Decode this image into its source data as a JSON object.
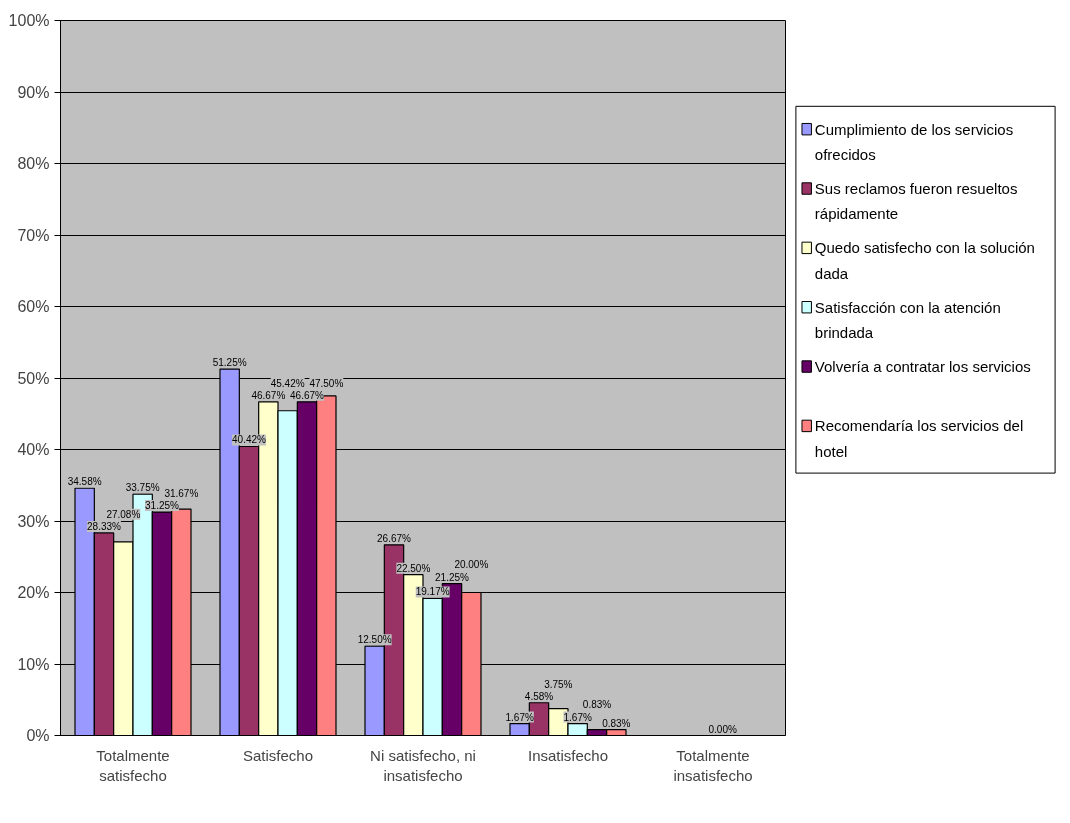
{
  "chart_data": {
    "type": "bar",
    "categories": [
      "Totalmente satisfecho",
      "Satisfecho",
      "Ni satisfecho, ni insatisfecho",
      "Insatisfecho",
      "Totalmente insatisfecho"
    ],
    "series": [
      {
        "name": "Cumplimiento de los servicios ofrecidos",
        "color": "#9999ff",
        "values": [
          34.58,
          51.25,
          12.5,
          1.67,
          0
        ],
        "value_labels": [
          "34.58%",
          "51.25%",
          "12.50%",
          "1.67%",
          null
        ]
      },
      {
        "name": "Sus reclamos fueron resueltos rápidamente",
        "color": "#993366",
        "values": [
          28.33,
          40.42,
          26.67,
          4.58,
          0
        ],
        "value_labels": [
          "28.33%",
          "40.42%",
          "26.67%",
          "4.58%",
          null
        ]
      },
      {
        "name": "Quedo satisfecho con la solución dada",
        "color": "#ffffcc",
        "values": [
          27.08,
          46.67,
          22.5,
          3.75,
          0
        ],
        "value_labels": [
          "27.08%",
          "46.67%",
          "22.50%",
          "3.75%",
          null
        ]
      },
      {
        "name": "Satisfacción con la atención brindada",
        "color": "#ccffff",
        "values": [
          33.75,
          45.42,
          19.17,
          1.67,
          0
        ],
        "value_labels": [
          "33.75%",
          "45.42%",
          "19.17%",
          "1.67%",
          "0.00%"
        ]
      },
      {
        "name": "Volvería a contratar los servicios",
        "color": "#660066",
        "values": [
          31.25,
          46.67,
          21.25,
          0.83,
          0
        ],
        "value_labels": [
          "31.25%",
          "46.67%",
          "21.25%",
          "0.83%",
          null
        ]
      },
      {
        "name": "Recomendaría los servicios del hotel",
        "color": "#ff8080",
        "values": [
          31.67,
          47.5,
          20.0,
          0.83,
          0
        ],
        "value_labels": [
          "31.67%",
          "47.50%",
          "20.00%",
          "0.83%",
          null
        ]
      }
    ],
    "ylim": [
      0,
      100
    ],
    "yticks": [
      {
        "value": 0,
        "label": "0%"
      },
      {
        "value": 10,
        "label": "10%"
      },
      {
        "value": 20,
        "label": "20%"
      },
      {
        "value": 30,
        "label": "30%"
      },
      {
        "value": 40,
        "label": "40%"
      },
      {
        "value": 50,
        "label": "50%"
      },
      {
        "value": 60,
        "label": "60%"
      },
      {
        "value": 70,
        "label": "70%"
      },
      {
        "value": 80,
        "label": "80%"
      },
      {
        "value": 90,
        "label": "90%"
      },
      {
        "value": 100,
        "label": "100%"
      }
    ],
    "grid": "y",
    "legend": "right"
  }
}
